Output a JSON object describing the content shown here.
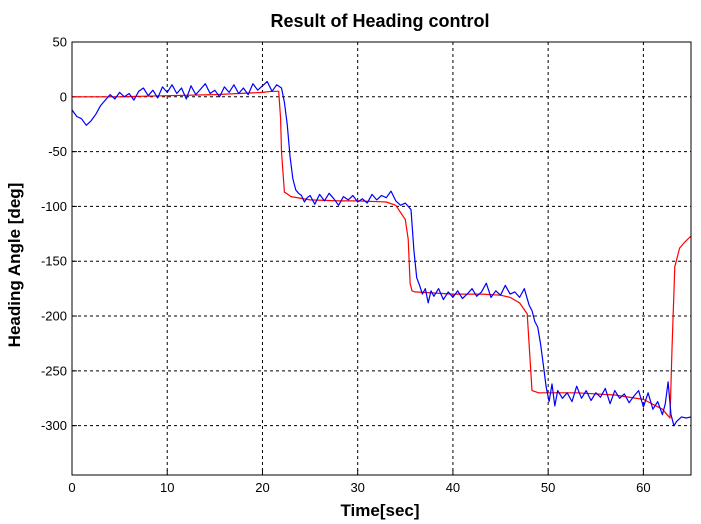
{
  "chart_data": {
    "type": "line",
    "title": "Result of Heading control",
    "xlabel": "Time[sec]",
    "ylabel": "Heading Angle [deg]",
    "xlim": [
      0,
      65
    ],
    "ylim": [
      -345,
      50
    ],
    "xticks": [
      0,
      10,
      20,
      30,
      40,
      50,
      60
    ],
    "yticks": [
      50,
      0,
      -50,
      -100,
      -150,
      -200,
      -250,
      -300
    ],
    "grid": true,
    "colors": {
      "red": "#ff0000",
      "blue": "#0000ff"
    },
    "series": [
      {
        "color": "#ff0000",
        "x": [
          0,
          5,
          10,
          15,
          20,
          21,
          21.7,
          21.9,
          22,
          22.3,
          22.5,
          23,
          25,
          28,
          30,
          33,
          34,
          35,
          35.3,
          35.5,
          35.7,
          36,
          38,
          40,
          43,
          45,
          46,
          47,
          47.8,
          48.1,
          48.3,
          49,
          50,
          53,
          57,
          60,
          62,
          62.5,
          62.8,
          63,
          63.3,
          63.8,
          64.3,
          65
        ],
        "values": [
          0,
          0,
          1,
          2,
          4,
          5,
          5,
          -20,
          -50,
          -87,
          -88,
          -91,
          -94,
          -95,
          -95,
          -96,
          -99,
          -112,
          -130,
          -170,
          -177,
          -178,
          -179,
          -180,
          -180,
          -181,
          -183,
          -188,
          -198,
          -240,
          -268,
          -270,
          -270,
          -270,
          -272,
          -276,
          -285,
          -290,
          -293,
          -230,
          -155,
          -138,
          -133,
          -127
        ]
      },
      {
        "color": "#0000ff",
        "x": [
          0,
          0.5,
          1,
          1.5,
          2,
          2.5,
          3,
          3.5,
          4,
          4.5,
          5,
          5.5,
          6,
          6.5,
          7,
          7.5,
          8,
          8.5,
          9,
          9.5,
          10,
          10.5,
          11,
          11.5,
          12,
          12.5,
          13,
          13.5,
          14,
          14.5,
          15,
          15.5,
          16,
          16.5,
          17,
          17.5,
          18,
          18.5,
          19,
          19.5,
          20,
          20.5,
          21,
          21.5,
          22,
          22.3,
          22.6,
          22.9,
          23.2,
          23.5,
          23.8,
          24.1,
          24.4,
          24.7,
          25,
          25.5,
          26,
          26.5,
          27,
          27.5,
          28,
          28.5,
          29,
          29.5,
          30,
          30.5,
          31,
          31.5,
          32,
          32.5,
          33,
          33.5,
          34,
          34.5,
          35,
          35.3,
          35.6,
          35.9,
          36.2,
          36.5,
          36.8,
          37.1,
          37.4,
          37.7,
          38,
          38.5,
          39,
          39.5,
          40,
          40.5,
          41,
          41.5,
          42,
          42.5,
          43,
          43.5,
          44,
          44.5,
          45,
          45.5,
          46,
          46.5,
          47,
          47.5,
          48,
          48.3,
          48.6,
          48.9,
          49.2,
          49.5,
          49.8,
          50.1,
          50.4,
          50.7,
          51,
          51.5,
          52,
          52.5,
          53,
          53.5,
          54,
          54.5,
          55,
          55.5,
          56,
          56.5,
          57,
          57.5,
          58,
          58.5,
          59,
          59.5,
          60,
          60.5,
          61,
          61.5,
          62,
          62.3,
          62.6,
          62.9,
          63.2,
          63.5,
          64,
          64.5,
          65
        ],
        "values": [
          -12,
          -18,
          -20,
          -26,
          -22,
          -16,
          -8,
          -3,
          2,
          -2,
          4,
          0,
          3,
          -3,
          5,
          8,
          1,
          6,
          -1,
          9,
          4,
          11,
          3,
          8,
          -2,
          10,
          2,
          7,
          12,
          3,
          6,
          0,
          9,
          4,
          11,
          3,
          8,
          2,
          12,
          6,
          10,
          14,
          5,
          11,
          8,
          -5,
          -25,
          -55,
          -75,
          -85,
          -88,
          -90,
          -96,
          -92,
          -90,
          -98,
          -89,
          -95,
          -88,
          -93,
          -99,
          -91,
          -94,
          -90,
          -96,
          -93,
          -97,
          -89,
          -94,
          -90,
          -92,
          -86,
          -95,
          -99,
          -97,
          -100,
          -103,
          -140,
          -165,
          -172,
          -180,
          -175,
          -188,
          -177,
          -182,
          -175,
          -185,
          -178,
          -183,
          -177,
          -184,
          -180,
          -175,
          -182,
          -178,
          -170,
          -183,
          -177,
          -181,
          -172,
          -180,
          -178,
          -183,
          -175,
          -190,
          -195,
          -205,
          -210,
          -225,
          -245,
          -265,
          -278,
          -262,
          -282,
          -268,
          -275,
          -270,
          -278,
          -264,
          -275,
          -268,
          -277,
          -270,
          -274,
          -266,
          -280,
          -268,
          -275,
          -271,
          -279,
          -273,
          -268,
          -283,
          -270,
          -285,
          -278,
          -290,
          -280,
          -260,
          -290,
          -300,
          -296,
          -292,
          -293,
          -292
        ]
      }
    ]
  }
}
